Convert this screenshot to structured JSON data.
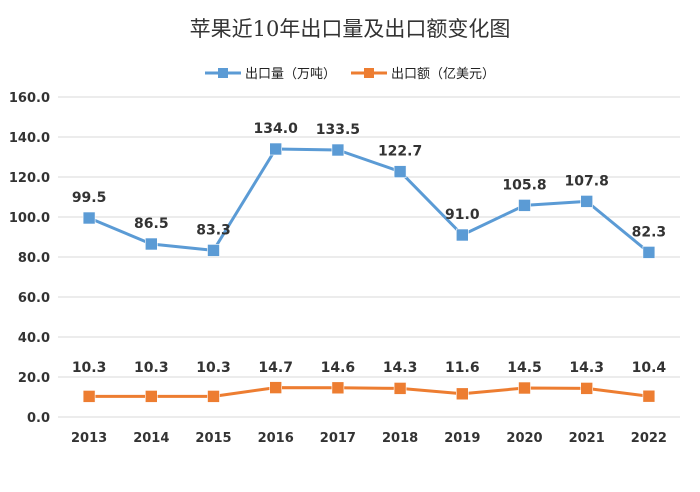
{
  "chart_data": {
    "type": "line",
    "title": "苹果近10年出口量及出口额变化图",
    "xlabel": "",
    "ylabel": "",
    "categories": [
      "2013",
      "2014",
      "2015",
      "2016",
      "2017",
      "2018",
      "2019",
      "2020",
      "2021",
      "2022"
    ],
    "ylim": [
      0,
      160
    ],
    "yticks": [
      "0.0",
      "20.0",
      "40.0",
      "60.0",
      "80.0",
      "100.0",
      "120.0",
      "140.0",
      "160.0"
    ],
    "grid": true,
    "legend_position": "top",
    "series": [
      {
        "name": "出口量（万吨）",
        "color": "#5b9bd5",
        "values": [
          99.5,
          86.5,
          83.3,
          134.0,
          133.5,
          122.7,
          91.0,
          105.8,
          107.8,
          82.3
        ],
        "labels": [
          "99.5",
          "86.5",
          "83.3",
          "134.0",
          "133.5",
          "122.7",
          "91.0",
          "105.8",
          "107.8",
          "82.3"
        ]
      },
      {
        "name": "出口额（亿美元）",
        "color": "#ed7d31",
        "values": [
          10.3,
          10.3,
          10.3,
          14.7,
          14.6,
          14.3,
          11.6,
          14.5,
          14.3,
          10.4
        ],
        "labels": [
          "10.3",
          "10.3",
          "10.3",
          "14.7",
          "14.6",
          "14.3",
          "11.6",
          "14.5",
          "14.3",
          "10.4"
        ]
      }
    ]
  }
}
